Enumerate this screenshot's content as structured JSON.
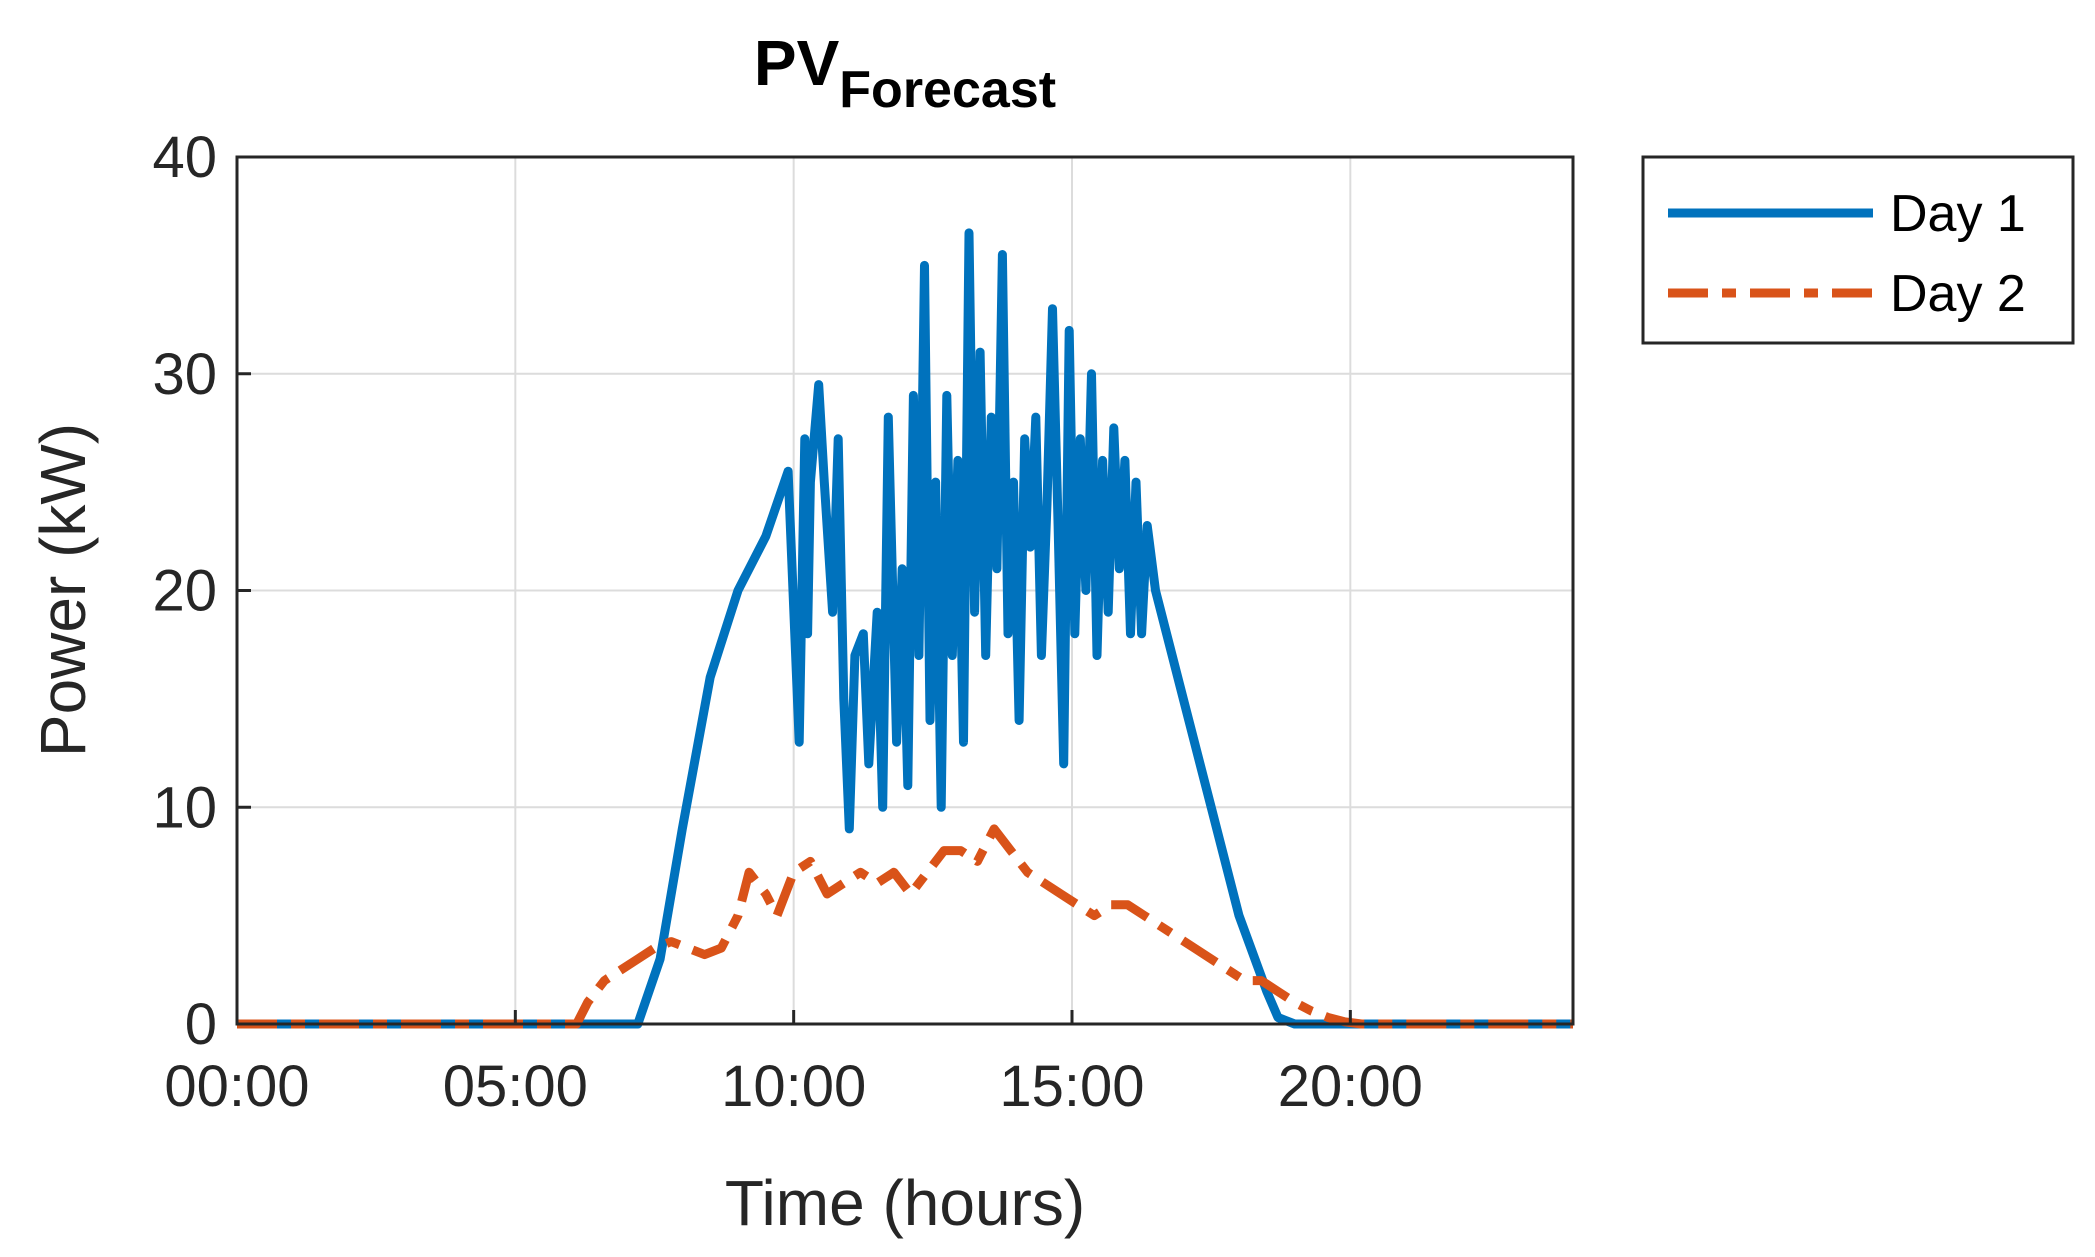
{
  "chart_data": {
    "type": "line",
    "title_main": "PV",
    "title_sub": "Forecast",
    "xlabel": "Time (hours)",
    "ylabel": "Power (kW)",
    "xlim": [
      0,
      24
    ],
    "ylim": [
      0,
      40
    ],
    "grid": true,
    "legend_position": "outside-top-right",
    "x_ticks": [
      {
        "value": 0,
        "label": "00:00"
      },
      {
        "value": 5,
        "label": "05:00"
      },
      {
        "value": 10,
        "label": "10:00"
      },
      {
        "value": 15,
        "label": "15:00"
      },
      {
        "value": 20,
        "label": "20:00"
      }
    ],
    "y_ticks": [
      {
        "value": 0,
        "label": "0"
      },
      {
        "value": 10,
        "label": "10"
      },
      {
        "value": 20,
        "label": "20"
      },
      {
        "value": 30,
        "label": "30"
      },
      {
        "value": 40,
        "label": "40"
      }
    ],
    "series": [
      {
        "name": "Day 1",
        "color": "#0072BD",
        "style": "solid",
        "x": [
          0,
          7.2,
          7.6,
          8.0,
          8.5,
          9.0,
          9.5,
          9.9,
          10.1,
          10.2,
          10.25,
          10.3,
          10.45,
          10.55,
          10.7,
          10.8,
          10.9,
          11.0,
          11.1,
          11.25,
          11.35,
          11.5,
          11.6,
          11.7,
          11.85,
          11.95,
          12.05,
          12.15,
          12.25,
          12.35,
          12.45,
          12.55,
          12.65,
          12.75,
          12.85,
          12.95,
          13.05,
          13.15,
          13.25,
          13.35,
          13.45,
          13.55,
          13.65,
          13.75,
          13.85,
          13.95,
          14.05,
          14.15,
          14.25,
          14.35,
          14.45,
          14.55,
          14.65,
          14.75,
          14.85,
          14.95,
          15.05,
          15.15,
          15.25,
          15.35,
          15.45,
          15.55,
          15.65,
          15.75,
          15.85,
          15.95,
          16.05,
          16.15,
          16.25,
          16.35,
          16.5,
          17.0,
          17.5,
          18.0,
          18.5,
          18.7,
          19.0,
          19.5,
          24
        ],
        "y": [
          0,
          0,
          3,
          9,
          16,
          20,
          22.5,
          25.5,
          13,
          27,
          18,
          25,
          29.5,
          25,
          19,
          27,
          15,
          9,
          17,
          18,
          12,
          19,
          10,
          28,
          13,
          21,
          11,
          29,
          17,
          35,
          14,
          25,
          10,
          29,
          17,
          26,
          13,
          36.5,
          19,
          31,
          17,
          28,
          21,
          35.5,
          18,
          25,
          14,
          27,
          22,
          28,
          17,
          24,
          33,
          23,
          12,
          32,
          18,
          27,
          20,
          30,
          17,
          26,
          19,
          27.5,
          21,
          26,
          18,
          25,
          18,
          23,
          20,
          15,
          10,
          5,
          1.5,
          0.3,
          0,
          0,
          0
        ]
      },
      {
        "name": "Day 2",
        "color": "#D95319",
        "style": "dashdot",
        "x": [
          0,
          6.1,
          6.3,
          6.6,
          6.9,
          7.2,
          7.5,
          7.8,
          8.1,
          8.4,
          8.7,
          9.0,
          9.2,
          9.5,
          9.7,
          10.0,
          10.3,
          10.6,
          10.9,
          11.2,
          11.5,
          11.8,
          12.1,
          12.4,
          12.7,
          13.0,
          13.3,
          13.6,
          13.9,
          14.2,
          14.5,
          14.8,
          15.1,
          15.4,
          15.7,
          16.0,
          16.3,
          16.6,
          16.9,
          17.2,
          17.5,
          17.8,
          18.1,
          18.4,
          18.7,
          19.0,
          19.3,
          19.6,
          19.9,
          20.2,
          24
        ],
        "y": [
          0,
          0,
          1,
          2,
          2.5,
          3,
          3.5,
          3.8,
          3.5,
          3.2,
          3.5,
          5,
          7,
          6,
          5,
          7,
          7.5,
          6,
          6.5,
          7,
          6.5,
          7,
          6,
          7,
          8,
          8,
          7.5,
          9,
          8,
          7,
          6.5,
          6,
          5.5,
          5,
          5.5,
          5.5,
          5,
          4.5,
          4,
          3.5,
          3,
          2.5,
          2,
          2,
          1.5,
          1,
          0.6,
          0.3,
          0.1,
          0,
          0
        ]
      }
    ]
  }
}
